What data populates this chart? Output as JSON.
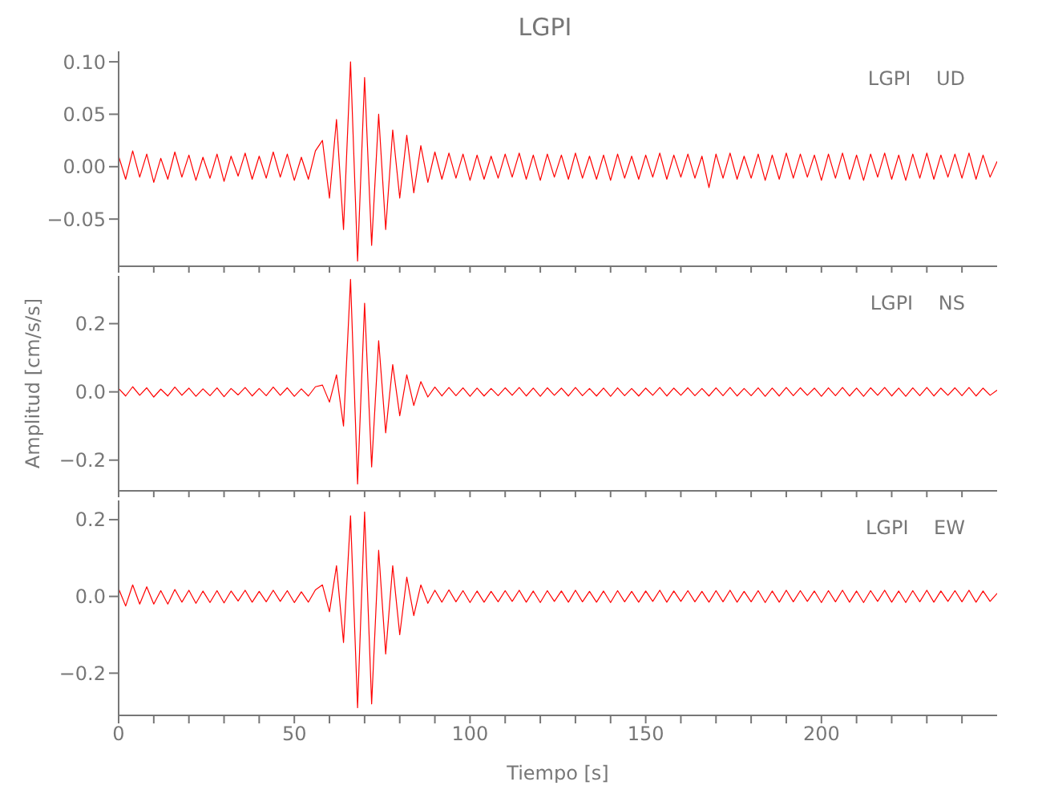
{
  "chart_data": [
    {
      "type": "line",
      "title": "LGPI",
      "xlim": [
        0,
        250
      ],
      "ylim": [
        -0.095,
        0.11
      ],
      "tick_labels": "y",
      "legend": "top right",
      "marker": "none",
      "line_style": "solid",
      "grid": false,
      "xticks": [
        0,
        {
          "value": 10,
          "label": null
        },
        {
          "value": 20,
          "label": null
        },
        {
          "value": 30,
          "label": null
        },
        {
          "value": 40,
          "label": null
        },
        50,
        {
          "value": 60,
          "label": null
        },
        {
          "value": 70,
          "label": null
        },
        {
          "value": 80,
          "label": null
        },
        {
          "value": 90,
          "label": null
        },
        100,
        {
          "value": 110,
          "label": null
        },
        {
          "value": 120,
          "label": null
        },
        {
          "value": 130,
          "label": null
        },
        {
          "value": 140,
          "label": null
        },
        150,
        {
          "value": 160,
          "label": null
        },
        {
          "value": 170,
          "label": null
        },
        {
          "value": 180,
          "label": null
        },
        {
          "value": 190,
          "label": null
        },
        200,
        {
          "value": 210,
          "label": null
        },
        {
          "value": 220,
          "label": null
        },
        {
          "value": 230,
          "label": null
        },
        {
          "value": 240,
          "label": null
        }
      ],
      "yticks": [
        {
          "value": -0.05,
          "label": "−0.05"
        },
        {
          "value": 0,
          "label": "0.00"
        },
        {
          "value": 0.05,
          "label": "0.05"
        },
        {
          "value": 0.1,
          "label": "0.10"
        }
      ],
      "x": [
        0,
        2,
        4,
        6,
        8,
        10,
        12,
        14,
        16,
        18,
        20,
        22,
        24,
        26,
        28,
        30,
        32,
        34,
        36,
        38,
        40,
        42,
        44,
        46,
        48,
        50,
        52,
        54,
        56,
        58,
        60,
        62,
        64,
        66,
        68,
        70,
        72,
        74,
        76,
        78,
        80,
        82,
        84,
        86,
        88,
        90,
        92,
        94,
        96,
        98,
        100,
        102,
        104,
        106,
        108,
        110,
        112,
        114,
        116,
        118,
        120,
        122,
        124,
        126,
        128,
        130,
        132,
        134,
        136,
        138,
        140,
        142,
        144,
        146,
        148,
        150,
        152,
        154,
        156,
        158,
        160,
        162,
        164,
        166,
        168,
        170,
        172,
        174,
        176,
        178,
        180,
        182,
        184,
        186,
        188,
        190,
        192,
        194,
        196,
        198,
        200,
        202,
        204,
        206,
        208,
        210,
        212,
        214,
        216,
        218,
        220,
        222,
        224,
        226,
        228,
        230,
        232,
        234,
        236,
        238,
        240,
        242,
        244,
        246,
        248,
        250
      ],
      "series": [
        {
          "name": "LGPI UD",
          "color": "#ff0000",
          "values": [
            0.01,
            -0.012,
            0.015,
            -0.01,
            0.012,
            -0.015,
            0.008,
            -0.012,
            0.014,
            -0.01,
            0.011,
            -0.013,
            0.009,
            -0.011,
            0.012,
            -0.014,
            0.01,
            -0.009,
            0.013,
            -0.012,
            0.01,
            -0.011,
            0.014,
            -0.01,
            0.012,
            -0.013,
            0.009,
            -0.012,
            0.015,
            0.025,
            -0.03,
            0.045,
            -0.06,
            0.1,
            -0.09,
            0.085,
            -0.075,
            0.05,
            -0.06,
            0.035,
            -0.03,
            0.03,
            -0.025,
            0.02,
            -0.015,
            0.014,
            -0.012,
            0.013,
            -0.011,
            0.012,
            -0.013,
            0.011,
            -0.012,
            0.01,
            -0.011,
            0.012,
            -0.01,
            0.013,
            -0.012,
            0.011,
            -0.013,
            0.012,
            -0.01,
            0.011,
            -0.012,
            0.013,
            -0.011,
            0.01,
            -0.012,
            0.011,
            -0.013,
            0.012,
            -0.011,
            0.01,
            -0.012,
            0.011,
            -0.01,
            0.013,
            -0.012,
            0.011,
            -0.01,
            0.012,
            -0.011,
            0.01,
            -0.02,
            0.012,
            -0.011,
            0.013,
            -0.012,
            0.01,
            -0.011,
            0.012,
            -0.013,
            0.011,
            -0.012,
            0.013,
            -0.011,
            0.012,
            -0.01,
            0.011,
            -0.013,
            0.012,
            -0.011,
            0.013,
            -0.012,
            0.011,
            -0.013,
            0.012,
            -0.01,
            0.013,
            -0.012,
            0.011,
            -0.013,
            0.012,
            -0.011,
            0.013,
            -0.012,
            0.011,
            -0.01,
            0.012,
            -0.011,
            0.013,
            -0.012,
            0.011,
            -0.01,
            0.005
          ]
        }
      ]
    },
    {
      "type": "line",
      "ylabel": "Amplitud  [cm/s/s]",
      "xlim": [
        0,
        250
      ],
      "ylim": [
        -0.29,
        0.34
      ],
      "tick_labels": "y",
      "legend": "top right",
      "marker": "none",
      "line_style": "solid",
      "grid": false,
      "xticks": [
        0,
        {
          "value": 10,
          "label": null
        },
        {
          "value": 20,
          "label": null
        },
        {
          "value": 30,
          "label": null
        },
        {
          "value": 40,
          "label": null
        },
        50,
        {
          "value": 60,
          "label": null
        },
        {
          "value": 70,
          "label": null
        },
        {
          "value": 80,
          "label": null
        },
        {
          "value": 90,
          "label": null
        },
        100,
        {
          "value": 110,
          "label": null
        },
        {
          "value": 120,
          "label": null
        },
        {
          "value": 130,
          "label": null
        },
        {
          "value": 140,
          "label": null
        },
        150,
        {
          "value": 160,
          "label": null
        },
        {
          "value": 170,
          "label": null
        },
        {
          "value": 180,
          "label": null
        },
        {
          "value": 190,
          "label": null
        },
        200,
        {
          "value": 210,
          "label": null
        },
        {
          "value": 220,
          "label": null
        },
        {
          "value": 230,
          "label": null
        },
        {
          "value": 240,
          "label": null
        }
      ],
      "yticks": [
        {
          "value": -0.2,
          "label": "−0.2"
        },
        {
          "value": 0,
          "label": "0.0"
        },
        {
          "value": 0.2,
          "label": "0.2"
        }
      ],
      "x": [
        0,
        2,
        4,
        6,
        8,
        10,
        12,
        14,
        16,
        18,
        20,
        22,
        24,
        26,
        28,
        30,
        32,
        34,
        36,
        38,
        40,
        42,
        44,
        46,
        48,
        50,
        52,
        54,
        56,
        58,
        60,
        62,
        64,
        66,
        68,
        70,
        72,
        74,
        76,
        78,
        80,
        82,
        84,
        86,
        88,
        90,
        92,
        94,
        96,
        98,
        100,
        102,
        104,
        106,
        108,
        110,
        112,
        114,
        116,
        118,
        120,
        122,
        124,
        126,
        128,
        130,
        132,
        134,
        136,
        138,
        140,
        142,
        144,
        146,
        148,
        150,
        152,
        154,
        156,
        158,
        160,
        162,
        164,
        166,
        168,
        170,
        172,
        174,
        176,
        178,
        180,
        182,
        184,
        186,
        188,
        190,
        192,
        194,
        196,
        198,
        200,
        202,
        204,
        206,
        208,
        210,
        212,
        214,
        216,
        218,
        220,
        222,
        224,
        226,
        228,
        230,
        232,
        234,
        236,
        238,
        240,
        242,
        244,
        246,
        248,
        250
      ],
      "series": [
        {
          "name": "LGPI NS",
          "color": "#ff0000",
          "values": [
            0.01,
            -0.012,
            0.015,
            -0.01,
            0.012,
            -0.015,
            0.008,
            -0.012,
            0.014,
            -0.01,
            0.011,
            -0.013,
            0.009,
            -0.011,
            0.012,
            -0.014,
            0.01,
            -0.009,
            0.013,
            -0.012,
            0.01,
            -0.011,
            0.014,
            -0.01,
            0.012,
            -0.013,
            0.009,
            -0.012,
            0.015,
            0.02,
            -0.03,
            0.05,
            -0.1,
            0.33,
            -0.27,
            0.26,
            -0.22,
            0.15,
            -0.12,
            0.08,
            -0.07,
            0.05,
            -0.04,
            0.03,
            -0.015,
            0.014,
            -0.012,
            0.013,
            -0.011,
            0.012,
            -0.013,
            0.011,
            -0.012,
            0.01,
            -0.011,
            0.012,
            -0.01,
            0.013,
            -0.012,
            0.011,
            -0.013,
            0.012,
            -0.01,
            0.011,
            -0.012,
            0.013,
            -0.011,
            0.01,
            -0.012,
            0.011,
            -0.013,
            0.012,
            -0.011,
            0.01,
            -0.012,
            0.011,
            -0.01,
            0.013,
            -0.012,
            0.011,
            -0.01,
            0.012,
            -0.011,
            0.01,
            -0.012,
            0.012,
            -0.011,
            0.013,
            -0.012,
            0.01,
            -0.011,
            0.012,
            -0.013,
            0.011,
            -0.012,
            0.013,
            -0.011,
            0.012,
            -0.01,
            0.011,
            -0.013,
            0.012,
            -0.011,
            0.013,
            -0.012,
            0.011,
            -0.013,
            0.012,
            -0.01,
            0.013,
            -0.012,
            0.011,
            -0.013,
            0.012,
            -0.011,
            0.013,
            -0.012,
            0.011,
            -0.01,
            0.012,
            -0.011,
            0.013,
            -0.012,
            0.011,
            -0.01,
            0.005
          ]
        }
      ]
    },
    {
      "type": "line",
      "xlabel": "Tiempo  [s]",
      "xlim": [
        0,
        250
      ],
      "ylim": [
        -0.31,
        0.25
      ],
      "legend": "top right",
      "marker": "none",
      "line_style": "solid",
      "grid": false,
      "xticks": [
        0,
        {
          "value": 10,
          "label": null
        },
        {
          "value": 20,
          "label": null
        },
        {
          "value": 30,
          "label": null
        },
        {
          "value": 40,
          "label": null
        },
        50,
        {
          "value": 60,
          "label": null
        },
        {
          "value": 70,
          "label": null
        },
        {
          "value": 80,
          "label": null
        },
        {
          "value": 90,
          "label": null
        },
        100,
        {
          "value": 110,
          "label": null
        },
        {
          "value": 120,
          "label": null
        },
        {
          "value": 130,
          "label": null
        },
        {
          "value": 140,
          "label": null
        },
        150,
        {
          "value": 160,
          "label": null
        },
        {
          "value": 170,
          "label": null
        },
        {
          "value": 180,
          "label": null
        },
        {
          "value": 190,
          "label": null
        },
        200,
        {
          "value": 210,
          "label": null
        },
        {
          "value": 220,
          "label": null
        },
        {
          "value": 230,
          "label": null
        },
        {
          "value": 240,
          "label": null
        }
      ],
      "yticks": [
        {
          "value": -0.2,
          "label": "−0.2"
        },
        {
          "value": 0,
          "label": "0.0"
        },
        {
          "value": 0.2,
          "label": "0.2"
        }
      ],
      "x": [
        0,
        2,
        4,
        6,
        8,
        10,
        12,
        14,
        16,
        18,
        20,
        22,
        24,
        26,
        28,
        30,
        32,
        34,
        36,
        38,
        40,
        42,
        44,
        46,
        48,
        50,
        52,
        54,
        56,
        58,
        60,
        62,
        64,
        66,
        68,
        70,
        72,
        74,
        76,
        78,
        80,
        82,
        84,
        86,
        88,
        90,
        92,
        94,
        96,
        98,
        100,
        102,
        104,
        106,
        108,
        110,
        112,
        114,
        116,
        118,
        120,
        122,
        124,
        126,
        128,
        130,
        132,
        134,
        136,
        138,
        140,
        142,
        144,
        146,
        148,
        150,
        152,
        154,
        156,
        158,
        160,
        162,
        164,
        166,
        168,
        170,
        172,
        174,
        176,
        178,
        180,
        182,
        184,
        186,
        188,
        190,
        192,
        194,
        196,
        198,
        200,
        202,
        204,
        206,
        208,
        210,
        212,
        214,
        216,
        218,
        220,
        222,
        224,
        226,
        228,
        230,
        232,
        234,
        236,
        238,
        240,
        242,
        244,
        246,
        248,
        250
      ],
      "series": [
        {
          "name": "LGPI EW",
          "color": "#ff0000",
          "values": [
            0.02,
            -0.025,
            0.03,
            -0.02,
            0.025,
            -0.02,
            0.015,
            -0.02,
            0.018,
            -0.015,
            0.016,
            -0.018,
            0.014,
            -0.016,
            0.015,
            -0.017,
            0.014,
            -0.012,
            0.016,
            -0.015,
            0.013,
            -0.014,
            0.016,
            -0.013,
            0.015,
            -0.016,
            0.012,
            -0.015,
            0.017,
            0.03,
            -0.04,
            0.08,
            -0.12,
            0.21,
            -0.29,
            0.22,
            -0.28,
            0.12,
            -0.15,
            0.08,
            -0.1,
            0.05,
            -0.05,
            0.03,
            -0.018,
            0.016,
            -0.015,
            0.017,
            -0.014,
            0.015,
            -0.016,
            0.014,
            -0.015,
            0.013,
            -0.014,
            0.015,
            -0.013,
            0.016,
            -0.015,
            0.014,
            -0.016,
            0.015,
            -0.013,
            0.014,
            -0.015,
            0.016,
            -0.014,
            0.013,
            -0.015,
            0.014,
            -0.016,
            0.015,
            -0.014,
            0.013,
            -0.015,
            0.014,
            -0.013,
            0.016,
            -0.015,
            0.014,
            -0.013,
            0.015,
            -0.014,
            0.013,
            -0.015,
            0.015,
            -0.014,
            0.016,
            -0.015,
            0.013,
            -0.014,
            0.015,
            -0.016,
            0.014,
            -0.015,
            0.016,
            -0.014,
            0.015,
            -0.013,
            0.014,
            -0.016,
            0.015,
            -0.014,
            0.016,
            -0.015,
            0.014,
            -0.016,
            0.015,
            -0.013,
            0.016,
            -0.015,
            0.014,
            -0.016,
            0.015,
            -0.014,
            0.016,
            -0.015,
            0.014,
            -0.013,
            0.015,
            -0.014,
            0.016,
            -0.015,
            0.014,
            -0.013,
            0.008
          ]
        }
      ]
    }
  ]
}
